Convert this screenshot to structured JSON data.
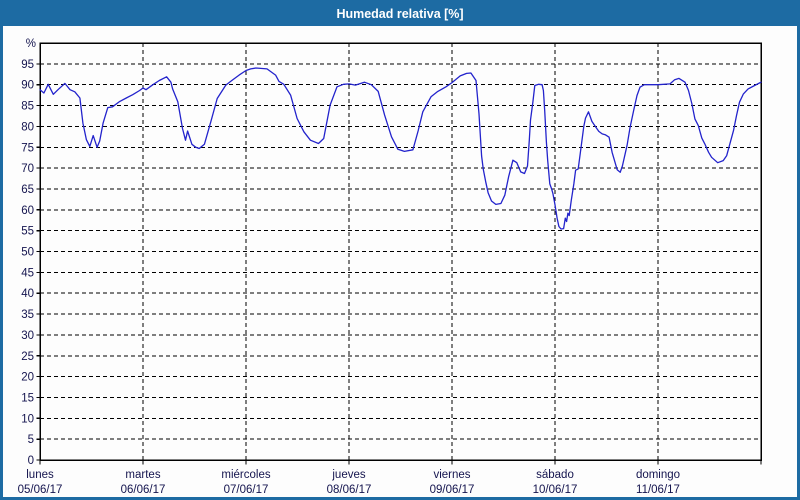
{
  "header": {
    "title": "Humedad relativa [%]"
  },
  "colors": {
    "header_bg": "#1d6ba3",
    "header_text": "#ffffff",
    "window_border": "#1d6ba3",
    "plot_bg": "#fdfdfd",
    "grid": "#000000",
    "frame": "#000000",
    "tick_label": "#14144e",
    "line": "#2323cc"
  },
  "chart_data": {
    "type": "line",
    "title": "Humedad relativa [%]",
    "xlabel": "",
    "ylabel": "%",
    "ylim": [
      0,
      100
    ],
    "y_ticks": [
      0,
      5,
      10,
      15,
      20,
      25,
      30,
      35,
      40,
      45,
      50,
      55,
      60,
      65,
      70,
      75,
      80,
      85,
      90,
      95
    ],
    "grid": "horizontal dashed lines at every 5%, vertical dashed lines at day boundaries",
    "legend_position": "none",
    "x_axis": {
      "unit": "hours",
      "range": [
        0,
        168
      ],
      "days": [
        {
          "name": "lunes",
          "date": "05/06/17"
        },
        {
          "name": "martes",
          "date": "06/06/17"
        },
        {
          "name": "miércoles",
          "date": "07/06/17"
        },
        {
          "name": "jueves",
          "date": "08/06/17"
        },
        {
          "name": "viernes",
          "date": "09/06/17"
        },
        {
          "name": "sábado",
          "date": "10/06/17"
        },
        {
          "name": "domingo",
          "date": "11/06/17"
        }
      ]
    },
    "series": [
      {
        "name": "Humedad relativa [%]",
        "color": "#2323cc",
        "points": [
          [
            0,
            88.8
          ],
          [
            0.9,
            88.0
          ],
          [
            1.9,
            90.1
          ],
          [
            3.1,
            87.7
          ],
          [
            4.2,
            88.8
          ],
          [
            5.8,
            90.3
          ],
          [
            7.0,
            88.8
          ],
          [
            8.1,
            88.3
          ],
          [
            9.3,
            86.8
          ],
          [
            10.0,
            80.8
          ],
          [
            10.8,
            76.8
          ],
          [
            11.6,
            75.2
          ],
          [
            12.4,
            77.8
          ],
          [
            13.3,
            75.0
          ],
          [
            13.9,
            76.5
          ],
          [
            14.7,
            80.8
          ],
          [
            15.8,
            84.5
          ],
          [
            16.9,
            84.7
          ],
          [
            18.6,
            86.0
          ],
          [
            20.1,
            86.8
          ],
          [
            21.6,
            87.6
          ],
          [
            23.2,
            88.6
          ],
          [
            24.0,
            89.2
          ],
          [
            24.7,
            88.8
          ],
          [
            26.3,
            90.0
          ],
          [
            27.8,
            91.0
          ],
          [
            29.5,
            91.9
          ],
          [
            30.5,
            90.6
          ],
          [
            30.9,
            89.0
          ],
          [
            32.1,
            85.9
          ],
          [
            33.2,
            79.5
          ],
          [
            33.9,
            76.7
          ],
          [
            34.4,
            78.9
          ],
          [
            35.4,
            75.7
          ],
          [
            36.3,
            75.0
          ],
          [
            37.1,
            74.7
          ],
          [
            38.3,
            75.7
          ],
          [
            39.8,
            81.1
          ],
          [
            41.3,
            86.7
          ],
          [
            43.3,
            89.9
          ],
          [
            44.8,
            91.1
          ],
          [
            46.4,
            92.3
          ],
          [
            48.0,
            93.4
          ],
          [
            49.1,
            93.8
          ],
          [
            50.3,
            94.0
          ],
          [
            52.9,
            93.8
          ],
          [
            54.9,
            92.3
          ],
          [
            55.7,
            90.8
          ],
          [
            56.8,
            90.1
          ],
          [
            58.4,
            87.5
          ],
          [
            59.9,
            81.9
          ],
          [
            61.5,
            78.7
          ],
          [
            63.0,
            76.7
          ],
          [
            64.9,
            75.9
          ],
          [
            66.1,
            77.1
          ],
          [
            67.6,
            85.1
          ],
          [
            69.2,
            89.5
          ],
          [
            70.7,
            90.1
          ],
          [
            72.0,
            90.2
          ],
          [
            73.5,
            89.9
          ],
          [
            75.6,
            90.6
          ],
          [
            77.2,
            90.0
          ],
          [
            78.8,
            88.4
          ],
          [
            80.3,
            82.7
          ],
          [
            81.9,
            77.5
          ],
          [
            83.4,
            74.5
          ],
          [
            84.9,
            74.0
          ],
          [
            86.9,
            74.4
          ],
          [
            88.1,
            78.9
          ],
          [
            89.2,
            83.5
          ],
          [
            91.1,
            87.1
          ],
          [
            92.7,
            88.4
          ],
          [
            94.6,
            89.5
          ],
          [
            96.0,
            90.5
          ],
          [
            97.9,
            92.1
          ],
          [
            99.4,
            92.7
          ],
          [
            100.4,
            92.8
          ],
          [
            101.6,
            91.0
          ],
          [
            102.3,
            83.0
          ],
          [
            102.9,
            72.9
          ],
          [
            103.3,
            69.7
          ],
          [
            103.9,
            66.5
          ],
          [
            104.4,
            64.1
          ],
          [
            105.2,
            62.1
          ],
          [
            106.2,
            61.3
          ],
          [
            107.4,
            61.5
          ],
          [
            108.3,
            63.5
          ],
          [
            109.2,
            68.0
          ],
          [
            110.2,
            71.9
          ],
          [
            111.1,
            71.3
          ],
          [
            112.0,
            69.1
          ],
          [
            112.9,
            68.7
          ],
          [
            113.6,
            70.5
          ],
          [
            114.0,
            76.7
          ],
          [
            114.3,
            81.5
          ],
          [
            114.8,
            85.5
          ],
          [
            115.3,
            89.8
          ],
          [
            116.2,
            90.1
          ],
          [
            117.0,
            90.0
          ],
          [
            117.3,
            88.6
          ],
          [
            117.6,
            83.8
          ],
          [
            118.0,
            76.2
          ],
          [
            118.3,
            71.8
          ],
          [
            118.8,
            66.2
          ],
          [
            119.2,
            65.0
          ],
          [
            119.5,
            63.9
          ],
          [
            120.0,
            61.2
          ],
          [
            120.5,
            58.0
          ],
          [
            120.9,
            56.0
          ],
          [
            121.4,
            55.4
          ],
          [
            122.0,
            55.5
          ],
          [
            122.4,
            58.0
          ],
          [
            122.7,
            57.2
          ],
          [
            123.0,
            59.2
          ],
          [
            123.3,
            58.6
          ],
          [
            123.8,
            62.3
          ],
          [
            124.4,
            66.3
          ],
          [
            124.8,
            69.5
          ],
          [
            125.4,
            69.8
          ],
          [
            125.9,
            73.6
          ],
          [
            126.7,
            80.0
          ],
          [
            127.1,
            82.0
          ],
          [
            127.8,
            83.5
          ],
          [
            128.6,
            81.2
          ],
          [
            129.4,
            80.0
          ],
          [
            130.2,
            78.8
          ],
          [
            131.0,
            78.2
          ],
          [
            131.7,
            78.0
          ],
          [
            132.6,
            77.4
          ],
          [
            133.3,
            73.8
          ],
          [
            134.5,
            69.6
          ],
          [
            135.2,
            69.0
          ],
          [
            135.7,
            70.5
          ],
          [
            136.8,
            75.5
          ],
          [
            137.5,
            79.8
          ],
          [
            138.4,
            84.2
          ],
          [
            139.1,
            87.4
          ],
          [
            139.8,
            89.4
          ],
          [
            140.8,
            90.0
          ],
          [
            142.6,
            90.0
          ],
          [
            144.0,
            90.0
          ],
          [
            146.8,
            90.2
          ],
          [
            147.9,
            91.2
          ],
          [
            148.9,
            91.5
          ],
          [
            150.3,
            90.6
          ],
          [
            151.1,
            88.6
          ],
          [
            151.9,
            85.4
          ],
          [
            152.6,
            81.8
          ],
          [
            153.4,
            80.2
          ],
          [
            154.2,
            77.2
          ],
          [
            154.9,
            75.8
          ],
          [
            155.8,
            73.8
          ],
          [
            156.5,
            72.6
          ],
          [
            157.9,
            71.3
          ],
          [
            159.2,
            71.8
          ],
          [
            160.0,
            73.0
          ],
          [
            161.6,
            79.0
          ],
          [
            162.3,
            82.6
          ],
          [
            163.0,
            85.8
          ],
          [
            163.9,
            87.8
          ],
          [
            165.0,
            89.0
          ],
          [
            166.5,
            89.8
          ],
          [
            168.0,
            90.6
          ]
        ]
      }
    ]
  }
}
